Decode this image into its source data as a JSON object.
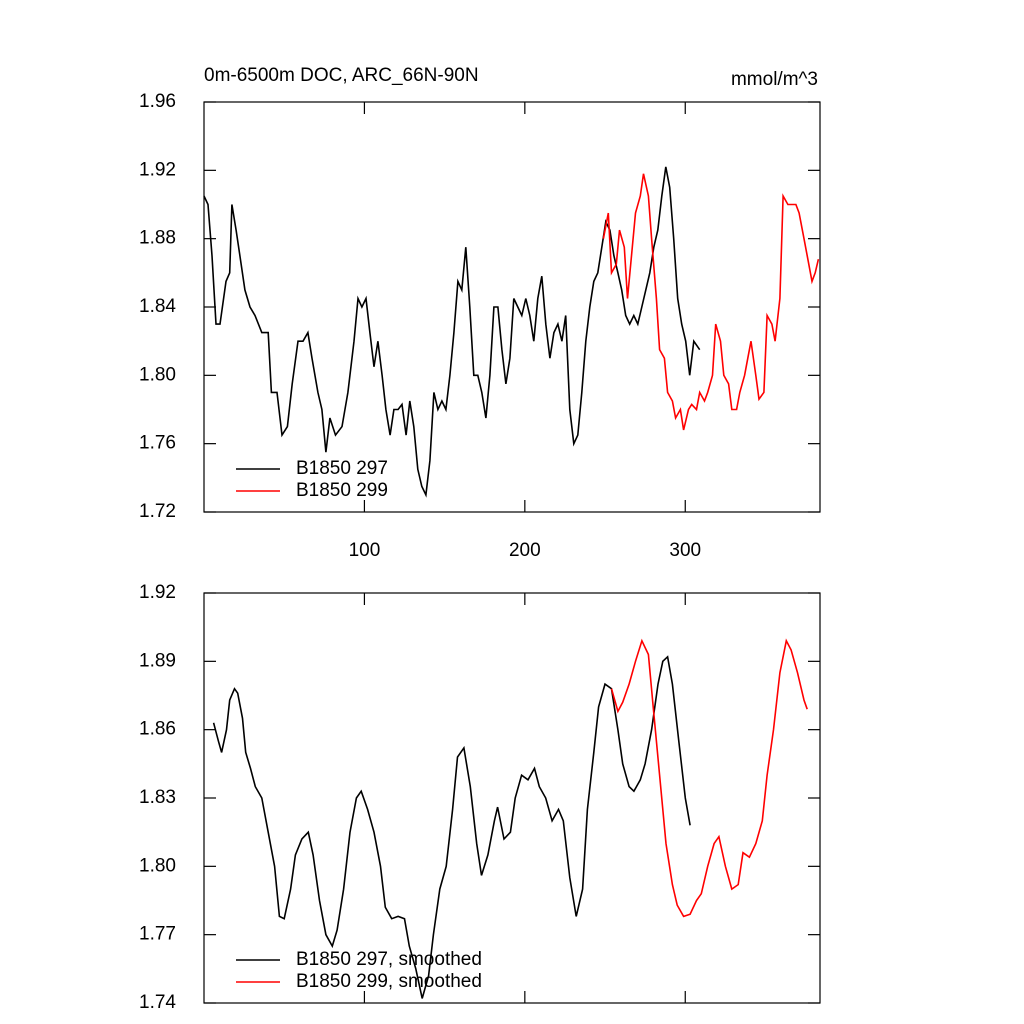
{
  "chart_data": [
    {
      "type": "line",
      "title": "0m-6500m DOC, ARC_66N-90N",
      "units": "mmol/m^3",
      "xlim": [
        0,
        384
      ],
      "xticks": [
        100,
        200,
        300
      ],
      "xtick_labels": true,
      "ylim": [
        1.72,
        1.96
      ],
      "yticks": [
        1.72,
        1.76,
        {
          "value": 1.8,
          "label": "1.80"
        },
        1.84,
        1.88,
        1.92,
        1.96
      ],
      "legend": "lower left",
      "series": [
        {
          "name": "B1850 297",
          "color": "#000000",
          "x": [
            0,
            2.5,
            5,
            7.5,
            10,
            13.7,
            16,
            17.4,
            20,
            22.4,
            25.5,
            28.7,
            31.8,
            36,
            40,
            42,
            45.5,
            48.6,
            52,
            55,
            58.6,
            61.7,
            64.8,
            67.3,
            71,
            73.5,
            76,
            78.5,
            82,
            86,
            89.7,
            93.5,
            96,
            98.4,
            101,
            103.4,
            106,
            108.4,
            111,
            113.4,
            116,
            118.4,
            121,
            123.4,
            126,
            128.3,
            130.8,
            133.3,
            135.8,
            138.3,
            140.8,
            143.3,
            145.8,
            148.3,
            150.8,
            153.3,
            155.8,
            158.3,
            160.7,
            163.2,
            165.7,
            168.2,
            170.7,
            173.2,
            175.7,
            178.2,
            180.7,
            183.2,
            185.7,
            188.2,
            190.7,
            193.1,
            195.6,
            198.1,
            200.6,
            203.1,
            205.6,
            208.1,
            210.6,
            213.1,
            215.6,
            218.1,
            220.6,
            223.1,
            225.5,
            228,
            230.5,
            233,
            235.5,
            238,
            240.5,
            243,
            245.5,
            248,
            250.5,
            253,
            255.5,
            258,
            260.4,
            262.9,
            265.4,
            267.9,
            270.4,
            272.9,
            275.4,
            277.9,
            280.4,
            282.9,
            285.4,
            287.9,
            290.3,
            292.8,
            295.3,
            297.8,
            300.3,
            302.8,
            305.3,
            309
          ],
          "values": [
            1.905,
            1.9,
            1.87,
            1.83,
            1.83,
            1.855,
            1.86,
            1.9,
            1.885,
            1.87,
            1.85,
            1.84,
            1.835,
            1.825,
            1.825,
            1.79,
            1.79,
            1.765,
            1.77,
            1.795,
            1.82,
            1.82,
            1.825,
            1.81,
            1.79,
            1.78,
            1.755,
            1.775,
            1.765,
            1.77,
            1.79,
            1.82,
            1.845,
            1.84,
            1.845,
            1.825,
            1.805,
            1.82,
            1.8,
            1.78,
            1.765,
            1.78,
            1.78,
            1.783,
            1.765,
            1.785,
            1.77,
            1.745,
            1.735,
            1.73,
            1.75,
            1.79,
            1.78,
            1.785,
            1.78,
            1.8,
            1.825,
            1.855,
            1.85,
            1.875,
            1.84,
            1.8,
            1.8,
            1.79,
            1.775,
            1.8,
            1.84,
            1.84,
            1.815,
            1.795,
            1.81,
            1.845,
            1.84,
            1.835,
            1.845,
            1.835,
            1.82,
            1.845,
            1.858,
            1.83,
            1.81,
            1.825,
            1.83,
            1.82,
            1.835,
            1.78,
            1.76,
            1.765,
            1.79,
            1.82,
            1.84,
            1.855,
            1.86,
            1.875,
            1.89,
            1.885,
            1.87,
            1.86,
            1.85,
            1.835,
            1.83,
            1.835,
            1.83,
            1.84,
            1.85,
            1.86,
            1.875,
            1.885,
            1.905,
            1.922,
            1.91,
            1.88,
            1.845,
            1.83,
            1.82,
            1.8,
            1.82,
            1.815
          ]
        },
        {
          "name": "B1850 299",
          "color": "#ff0000",
          "x": [
            249,
            252,
            254,
            257,
            259,
            262,
            264,
            267,
            269,
            272,
            274,
            277,
            279,
            282,
            284,
            287,
            289,
            292,
            294,
            297,
            299,
            302,
            304,
            307,
            309,
            312,
            314,
            317,
            319,
            322,
            324,
            327,
            329,
            332,
            334,
            337,
            339,
            341,
            344,
            346,
            349,
            351,
            354,
            356,
            359,
            361,
            364,
            366,
            369,
            371,
            374,
            376,
            379,
            381,
            383
          ],
          "values": [
            1.88,
            1.895,
            1.86,
            1.865,
            1.885,
            1.875,
            1.845,
            1.875,
            1.895,
            1.905,
            1.918,
            1.905,
            1.88,
            1.845,
            1.815,
            1.81,
            1.79,
            1.785,
            1.775,
            1.78,
            1.768,
            1.78,
            1.783,
            1.78,
            1.79,
            1.785,
            1.79,
            1.8,
            1.83,
            1.82,
            1.8,
            1.795,
            1.78,
            1.78,
            1.79,
            1.8,
            1.81,
            1.82,
            1.8,
            1.786,
            1.79,
            1.835,
            1.83,
            1.82,
            1.845,
            1.905,
            1.9,
            1.9,
            1.9,
            1.895,
            1.88,
            1.87,
            1.855,
            1.86,
            1.868
          ]
        }
      ]
    },
    {
      "type": "line",
      "xlim": [
        0,
        384
      ],
      "xticks": [
        100,
        200,
        300
      ],
      "xtick_labels": false,
      "ylim": [
        1.74,
        1.92
      ],
      "yticks": [
        1.74,
        1.77,
        {
          "value": 1.8,
          "label": "1.80"
        },
        1.83,
        1.86,
        1.89,
        1.92
      ],
      "legend": "lower left",
      "series": [
        {
          "name": "B1850 297, smoothed",
          "color": "#000000",
          "x": [
            6,
            9,
            11,
            14,
            16,
            19,
            21,
            24,
            26,
            29,
            32,
            36,
            40,
            44,
            47,
            50,
            54,
            57,
            61,
            65,
            68,
            72,
            76,
            80,
            83,
            87,
            91,
            95,
            98,
            102,
            106,
            110,
            113,
            117,
            121,
            125,
            128,
            132,
            136,
            140,
            143,
            147,
            151,
            155,
            158,
            162,
            166,
            170,
            173,
            177,
            181,
            183,
            187,
            191,
            194,
            198,
            202,
            206,
            209,
            213,
            217,
            221,
            224,
            228,
            232,
            236,
            239,
            243,
            246,
            250,
            254,
            258,
            261,
            265,
            268,
            272,
            275,
            279,
            283,
            286,
            289,
            292,
            296,
            300,
            303
          ],
          "values": [
            1.863,
            1.855,
            1.85,
            1.86,
            1.873,
            1.878,
            1.876,
            1.865,
            1.85,
            1.843,
            1.835,
            1.83,
            1.815,
            1.8,
            1.778,
            1.777,
            1.79,
            1.805,
            1.812,
            1.815,
            1.805,
            1.785,
            1.77,
            1.765,
            1.772,
            1.79,
            1.815,
            1.83,
            1.833,
            1.825,
            1.815,
            1.8,
            1.782,
            1.777,
            1.778,
            1.777,
            1.765,
            1.755,
            1.742,
            1.752,
            1.77,
            1.79,
            1.8,
            1.825,
            1.848,
            1.852,
            1.835,
            1.81,
            1.796,
            1.805,
            1.82,
            1.826,
            1.812,
            1.815,
            1.83,
            1.84,
            1.838,
            1.843,
            1.835,
            1.83,
            1.82,
            1.825,
            1.82,
            1.795,
            1.778,
            1.79,
            1.825,
            1.85,
            1.87,
            1.88,
            1.878,
            1.86,
            1.845,
            1.835,
            1.833,
            1.838,
            1.845,
            1.86,
            1.88,
            1.89,
            1.892,
            1.88,
            1.855,
            1.83,
            1.818
          ]
        },
        {
          "name": "B1850 299, smoothed",
          "color": "#ff0000",
          "x": [
            254,
            258,
            261,
            265,
            269,
            273,
            277,
            280,
            284,
            288,
            292,
            295,
            299,
            303,
            307,
            310,
            314,
            318,
            321,
            325,
            329,
            333,
            336,
            340,
            344,
            348,
            351,
            355,
            359,
            363,
            366,
            370,
            374,
            376
          ],
          "values": [
            1.878,
            1.868,
            1.872,
            1.88,
            1.89,
            1.899,
            1.893,
            1.87,
            1.84,
            1.81,
            1.792,
            1.783,
            1.778,
            1.779,
            1.785,
            1.788,
            1.8,
            1.81,
            1.813,
            1.8,
            1.79,
            1.792,
            1.806,
            1.804,
            1.81,
            1.82,
            1.84,
            1.86,
            1.885,
            1.899,
            1.895,
            1.885,
            1.873,
            1.869
          ]
        }
      ]
    }
  ]
}
